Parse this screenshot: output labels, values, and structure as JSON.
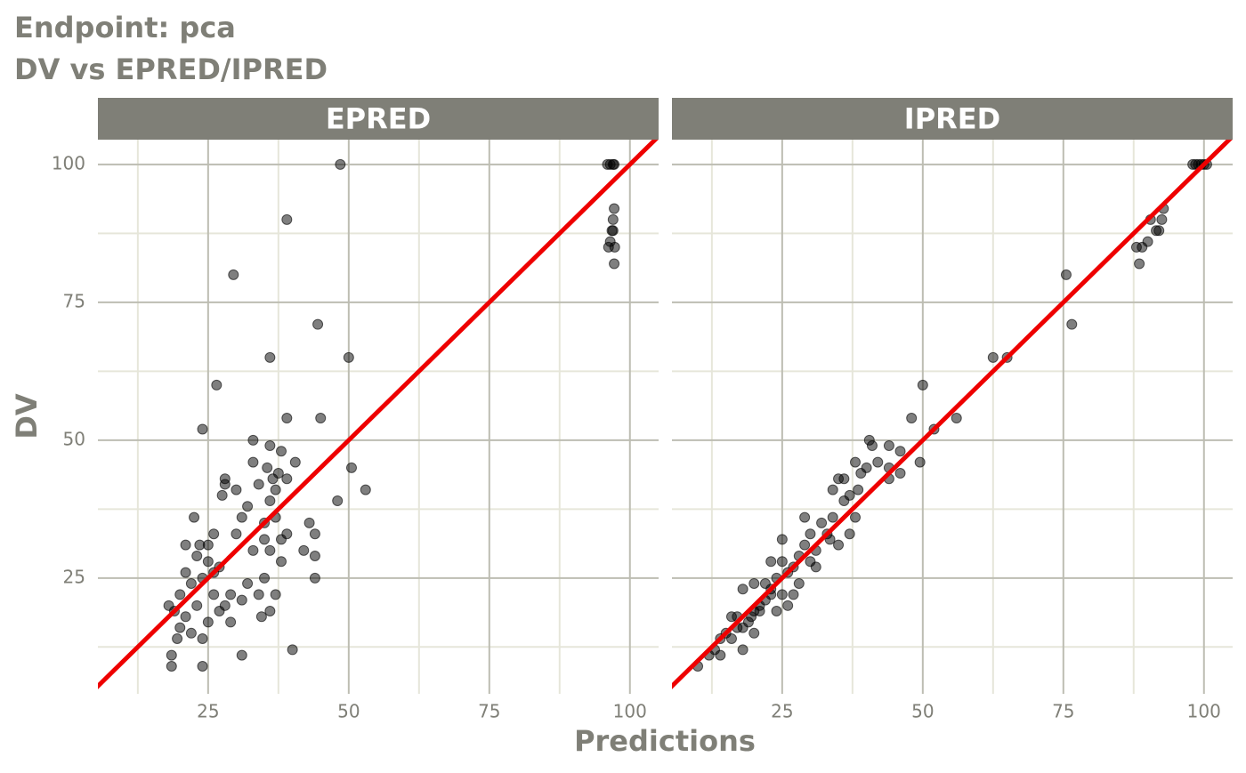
{
  "chart_data": {
    "type": "scatter",
    "title": "Endpoint:  pca",
    "subtitle": "DV vs EPRED/IPRED",
    "xlabel": "Predictions",
    "ylabel": "DV",
    "xlim": [
      5.4,
      105.1
    ],
    "ylim": [
      4,
      104.5
    ],
    "xticks": [
      25,
      50,
      75,
      100
    ],
    "yticks": [
      25,
      50,
      75,
      100
    ],
    "minor_xticks": [
      12.5,
      37.5,
      62.5,
      87.5
    ],
    "minor_yticks": [
      12.5,
      37.5,
      62.5,
      87.5
    ],
    "grid": true,
    "identity_line": true,
    "identity_color": "#ee0000",
    "point_color": "#000000",
    "facets": [
      {
        "name": "EPRED",
        "x": [
          96,
          96.5,
          97,
          97.2,
          96.8,
          97,
          97.2,
          97,
          96.5,
          96.2,
          97.3,
          97.2,
          48.5,
          39,
          29.5,
          44.5,
          36,
          50,
          26.5,
          24,
          39,
          45,
          33,
          50.5,
          53,
          48,
          44,
          44,
          43,
          44,
          40,
          31,
          24,
          18.5,
          18.5,
          18,
          20,
          21,
          22,
          23,
          24,
          25,
          26,
          27,
          25,
          22,
          20,
          19,
          21,
          23,
          26,
          28,
          30,
          29,
          31,
          32,
          33,
          34,
          35,
          35.5,
          36,
          36.5,
          37,
          38,
          39,
          40.5,
          38,
          36,
          34,
          32,
          30,
          28,
          29,
          27,
          24,
          22.5,
          25,
          28,
          35,
          37,
          38,
          34.5,
          36,
          37,
          39,
          42,
          33,
          31,
          26,
          21,
          19.5,
          23.5,
          27.5,
          35,
          36,
          37.5
        ],
        "values": [
          100,
          100,
          100,
          100,
          88,
          88,
          92,
          90,
          86,
          85,
          85,
          82,
          100,
          90,
          80,
          71,
          65,
          65,
          60,
          52,
          54,
          54,
          50,
          45,
          41,
          39,
          33,
          29,
          35,
          25,
          12,
          11,
          9,
          9,
          11,
          20,
          22,
          18,
          24,
          20,
          25,
          28,
          22,
          27,
          17,
          15,
          16,
          19,
          26,
          29,
          33,
          42,
          41,
          22,
          36,
          38,
          46,
          42,
          35,
          45,
          49,
          43,
          41,
          48,
          43,
          46,
          32,
          30,
          22,
          24,
          33,
          20,
          17,
          19,
          14,
          36,
          31,
          43,
          32,
          36,
          28,
          18,
          19,
          22,
          33,
          30,
          30,
          21,
          26,
          31,
          14,
          31,
          40,
          25,
          39,
          44
        ]
      },
      {
        "name": "IPRED",
        "x": [
          98,
          98.5,
          99,
          99.5,
          100,
          100.5,
          92,
          91.5,
          92.5,
          90.5,
          92.8,
          90,
          89,
          88,
          88.5,
          75.5,
          76.5,
          62.5,
          65,
          56,
          52,
          50,
          48,
          49.5,
          46,
          46,
          44,
          44,
          44,
          40.5,
          41,
          42,
          40,
          39,
          38,
          38.5,
          38,
          37,
          36,
          35,
          34,
          34,
          33.5,
          32,
          31,
          30,
          29,
          29,
          28,
          27,
          26,
          25,
          25,
          24,
          23,
          23,
          22,
          21,
          20,
          19.5,
          19,
          18,
          17,
          17,
          16,
          15,
          14,
          14,
          13,
          12,
          10,
          18,
          20,
          24,
          26,
          27,
          28,
          30,
          31,
          33,
          35,
          37,
          36,
          21,
          22,
          16,
          18,
          20,
          25,
          23
        ],
        "values": [
          100,
          100,
          100,
          100,
          100,
          100,
          88,
          88,
          90,
          90,
          92,
          86,
          85,
          85,
          82,
          80,
          71,
          65,
          65,
          54,
          52,
          60,
          54,
          46,
          48,
          44,
          45,
          49,
          43,
          50,
          49,
          46,
          45,
          44,
          46,
          41,
          36,
          40,
          43,
          43,
          41,
          36,
          32,
          35,
          30,
          33,
          31,
          36,
          29,
          27,
          26,
          32,
          28,
          25,
          22,
          28,
          24,
          20,
          19,
          18,
          17,
          16,
          18,
          16,
          14,
          15,
          14,
          11,
          12,
          11,
          9,
          23,
          24,
          19,
          20,
          22,
          24,
          28,
          27,
          33,
          31,
          33,
          39,
          19,
          21,
          18,
          12,
          15,
          22,
          23
        ]
      }
    ]
  }
}
